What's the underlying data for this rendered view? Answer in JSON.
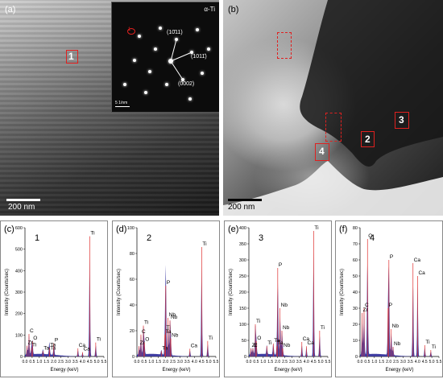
{
  "panels": {
    "a": {
      "label": "(a)",
      "scale": "200 nm",
      "roi_label": "1",
      "inset": {
        "title": "α-Ti",
        "spot_marker": "1",
        "index1": "(10̄11)",
        "index2": "(1011̄)",
        "index3": "(0002)",
        "inset_scale": "5 1/nm"
      }
    },
    "b": {
      "label": "(b)",
      "scale": "200 nm",
      "roi_labels": [
        "2",
        "3",
        "4"
      ]
    }
  },
  "chart_data": [
    {
      "panel": "(c)",
      "type": "line",
      "spectrum_label": "1",
      "xlabel": "Energy (keV)",
      "ylabel": "Intensity (Counts/sec)",
      "xlim": [
        0,
        5.5
      ],
      "ylim": [
        0,
        600
      ],
      "xticks": [
        0.0,
        0.5,
        1.0,
        1.5,
        2.0,
        2.5,
        3.0,
        3.5,
        4.0,
        4.5,
        5.0,
        5.5
      ],
      "yticks": [
        0,
        100,
        200,
        300,
        400,
        500,
        600
      ],
      "peaks": [
        {
          "label": "C",
          "x": 0.28,
          "y": 105
        },
        {
          "label": "O",
          "x": 0.52,
          "y": 72
        },
        {
          "label": "Zr",
          "x": 0.15,
          "y": 50
        },
        {
          "label": "Ti",
          "x": 0.45,
          "y": 40
        },
        {
          "label": "Ta",
          "x": 1.7,
          "y": 25
        },
        {
          "label": "Ta",
          "x": 1.25,
          "y": 25
        },
        {
          "label": "P",
          "x": 2.01,
          "y": 62
        },
        {
          "label": "Ta",
          "x": 1.7,
          "y": 40
        },
        {
          "label": "Ca",
          "x": 3.69,
          "y": 38
        },
        {
          "label": "Ti",
          "x": 4.51,
          "y": 560
        },
        {
          "label": "Ca",
          "x": 4.01,
          "y": 20
        },
        {
          "label": "Ti",
          "x": 4.93,
          "y": 65
        }
      ]
    },
    {
      "panel": "(d)",
      "type": "line",
      "spectrum_label": "2",
      "xlabel": "Energy (keV)",
      "ylabel": "Intensity (Counts/sec)",
      "xlim": [
        0,
        5.5
      ],
      "ylim": [
        0,
        100
      ],
      "xticks": [
        0.0,
        0.5,
        1.0,
        1.5,
        2.0,
        2.5,
        3.0,
        3.5,
        4.0,
        4.5,
        5.0,
        5.5
      ],
      "yticks": [
        0,
        20,
        40,
        60,
        80,
        100
      ],
      "peaks": [
        {
          "label": "Ti",
          "x": 0.45,
          "y": 24
        },
        {
          "label": "C",
          "x": 0.28,
          "y": 17
        },
        {
          "label": "Zr",
          "x": 0.15,
          "y": 8
        },
        {
          "label": "O",
          "x": 0.52,
          "y": 11
        },
        {
          "label": "Ta",
          "x": 1.7,
          "y": 4
        },
        {
          "label": "P",
          "x": 2.01,
          "y": 55
        },
        {
          "label": "Nb",
          "x": 2.17,
          "y": 30
        },
        {
          "label": "Ti",
          "x": 2.0,
          "y": 20
        },
        {
          "label": "Nb",
          "x": 2.3,
          "y": 28
        },
        {
          "label": "Ta",
          "x": 1.95,
          "y": 17
        },
        {
          "label": "Nb",
          "x": 2.36,
          "y": 14
        },
        {
          "label": "Ti",
          "x": 4.51,
          "y": 85
        },
        {
          "label": "Ca",
          "x": 3.69,
          "y": 6
        },
        {
          "label": "Ti",
          "x": 4.93,
          "y": 12
        }
      ]
    },
    {
      "panel": "(e)",
      "type": "line",
      "spectrum_label": "3",
      "xlabel": "Energy (keV)",
      "ylabel": "Intensity (Counts/sec)",
      "xlim": [
        0,
        5.5
      ],
      "ylim": [
        0,
        400
      ],
      "xticks": [
        0.0,
        0.5,
        1.0,
        1.5,
        2.0,
        2.5,
        3.0,
        3.5,
        4.0,
        4.5,
        5.0,
        5.5
      ],
      "yticks": [
        0,
        50,
        100,
        150,
        200,
        250,
        300,
        350,
        400
      ],
      "peaks": [
        {
          "label": "P",
          "x": 2.01,
          "y": 275
        },
        {
          "label": "Nb",
          "x": 2.17,
          "y": 150
        },
        {
          "label": "Ti",
          "x": 0.45,
          "y": 100
        },
        {
          "label": "O",
          "x": 0.52,
          "y": 48
        },
        {
          "label": "Nb",
          "x": 2.3,
          "y": 80
        },
        {
          "label": "Ta",
          "x": 1.7,
          "y": 40
        },
        {
          "label": "Ta",
          "x": 1.95,
          "y": 32
        },
        {
          "label": "Ti",
          "x": 1.25,
          "y": 32
        },
        {
          "label": "Zr",
          "x": 0.15,
          "y": 25
        },
        {
          "label": "C",
          "x": 0.28,
          "y": 25
        },
        {
          "label": "Nb",
          "x": 2.36,
          "y": 25
        },
        {
          "label": "Ti",
          "x": 4.51,
          "y": 390
        },
        {
          "label": "Ca",
          "x": 3.69,
          "y": 45
        },
        {
          "label": "Ca",
          "x": 4.01,
          "y": 32
        },
        {
          "label": "Ti",
          "x": 4.93,
          "y": 80
        }
      ]
    },
    {
      "panel": "(f)",
      "type": "line",
      "spectrum_label": "4",
      "xlabel": "Energy (keV)",
      "ylabel": "Intensity (Counts/sec)",
      "xlim": [
        0,
        5.5
      ],
      "ylim": [
        0,
        80
      ],
      "xticks": [
        0.0,
        0.5,
        1.0,
        1.5,
        2.0,
        2.5,
        3.0,
        3.5,
        4.0,
        4.5,
        5.0,
        5.5
      ],
      "yticks": [
        0,
        10,
        20,
        30,
        40,
        50,
        60,
        70,
        80
      ],
      "peaks": [
        {
          "label": "O",
          "x": 0.52,
          "y": 73
        },
        {
          "label": "C",
          "x": 0.28,
          "y": 30
        },
        {
          "label": "Zr",
          "x": 0.15,
          "y": 27
        },
        {
          "label": "P",
          "x": 2.01,
          "y": 60
        },
        {
          "label": "P",
          "x": 1.95,
          "y": 30
        },
        {
          "label": "Nb",
          "x": 2.17,
          "y": 17
        },
        {
          "label": "Nb",
          "x": 2.3,
          "y": 6
        },
        {
          "label": "Ca",
          "x": 3.69,
          "y": 58
        },
        {
          "label": "Ca",
          "x": 4.01,
          "y": 50
        },
        {
          "label": "Ti",
          "x": 4.51,
          "y": 7
        },
        {
          "label": "Ti",
          "x": 4.93,
          "y": 4
        }
      ]
    }
  ]
}
